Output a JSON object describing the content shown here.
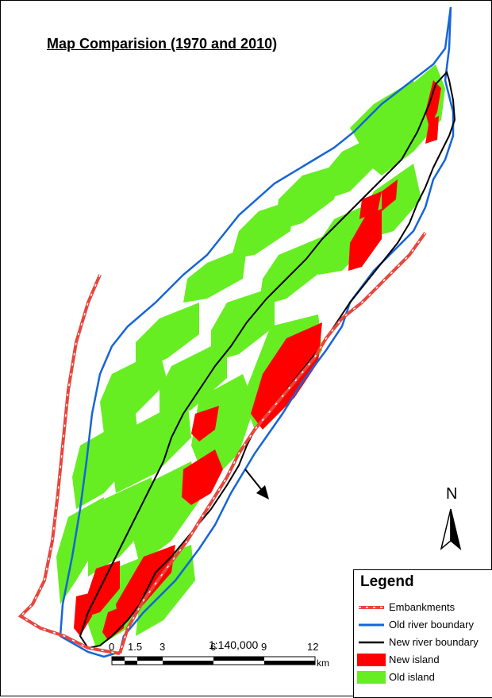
{
  "title": "Map Comparision (1970 and 2010)",
  "scale": {
    "ratio": "1:140,000",
    "ticks": [
      "0",
      "1.5",
      "3",
      "6",
      "9",
      "12"
    ],
    "unit": "km"
  },
  "north": {
    "letter": "N"
  },
  "legend": {
    "title": "Legend",
    "items": [
      {
        "label": "Embankments",
        "color": "#e8453c"
      },
      {
        "label": "Old river boundary",
        "color": "#1565d8"
      },
      {
        "label": "New river boundary",
        "color": "#000000"
      },
      {
        "label": "New island",
        "color": "#ff0000"
      },
      {
        "label": "Old island",
        "color": "#66ee22"
      }
    ]
  },
  "colors": {
    "old_island": "#66ee22",
    "new_island": "#ff0000",
    "old_boundary": "#1565d8",
    "new_boundary": "#000000",
    "embankment": "#e8453c"
  }
}
